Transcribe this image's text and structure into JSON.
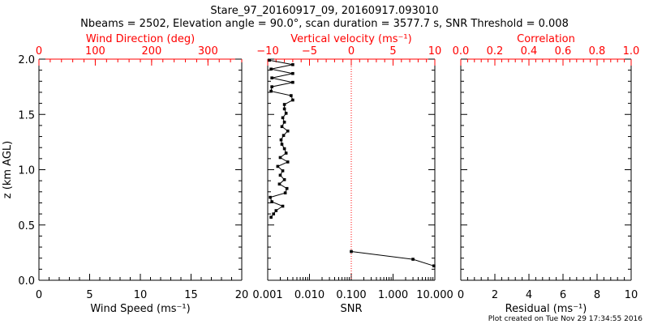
{
  "title": "Stare_97_20160917_09, 20160917.093010",
  "subtitle": "Nbeams = 2502, Elevation angle = 90.0°, scan duration = 3577.7 s, SNR Threshold = 0.008",
  "footer": "Plot created on Tue Nov 29 17:34:55 2016",
  "colors": {
    "axis": "#000000",
    "accent": "#ff0000",
    "data": "#000000"
  },
  "chart_data": [
    {
      "type": "line",
      "panel": "wind",
      "ylabel": "z (km AGL)",
      "ylim": [
        0,
        2.0
      ],
      "yticks": [
        0.0,
        0.5,
        1.0,
        1.5,
        2.0
      ],
      "ytick_labels": [
        "0.0",
        "0.5",
        "1.0",
        "1.5",
        "2.0"
      ],
      "bottom_axis": {
        "label": "Wind Speed (ms⁻¹)",
        "lim": [
          0,
          20
        ],
        "ticks": [
          0,
          5,
          10,
          15,
          20
        ],
        "tick_labels": [
          "0",
          "5",
          "10",
          "15",
          "20"
        ]
      },
      "top_axis": {
        "label": "Wind Direction (deg)",
        "lim": [
          0,
          360
        ],
        "ticks": [
          0,
          100,
          200,
          300
        ],
        "tick_labels": [
          "0",
          "100",
          "200",
          "300"
        ]
      },
      "series": []
    },
    {
      "type": "line",
      "panel": "vertical",
      "ylim": [
        0,
        2.0
      ],
      "bottom_axis": {
        "label": "SNR",
        "scale": "log",
        "lim": [
          0.001,
          10
        ],
        "ticks": [
          0.001,
          0.01,
          0.1,
          1,
          10
        ],
        "tick_labels": [
          "0.001",
          "0.010",
          "0.100",
          "1.000",
          "10.000"
        ]
      },
      "top_axis": {
        "label": "Vertical velocity (ms⁻¹)",
        "lim": [
          -10,
          10
        ],
        "ticks": [
          -10,
          -5,
          0,
          5,
          10
        ],
        "tick_labels": [
          "−10",
          "−5",
          "0",
          "5",
          "10"
        ]
      },
      "zero_line": {
        "axis": "top",
        "value": 0
      },
      "series": [
        {
          "axis": "top",
          "points": [
            {
              "x": -9.8,
              "z": 1.99
            },
            {
              "x": -7.0,
              "z": 1.95
            },
            {
              "x": -9.6,
              "z": 1.91
            },
            {
              "x": -7.0,
              "z": 1.87
            },
            {
              "x": -9.5,
              "z": 1.83
            },
            {
              "x": -7.0,
              "z": 1.79
            },
            {
              "x": -9.5,
              "z": 1.75
            },
            {
              "x": -9.6,
              "z": 1.71
            },
            {
              "x": -7.2,
              "z": 1.67
            },
            {
              "x": -7.0,
              "z": 1.63
            },
            {
              "x": -8.0,
              "z": 1.59
            },
            {
              "x": -8.0,
              "z": 1.55
            },
            {
              "x": -7.8,
              "z": 1.51
            },
            {
              "x": -8.2,
              "z": 1.47
            },
            {
              "x": -8.0,
              "z": 1.43
            },
            {
              "x": -8.3,
              "z": 1.39
            },
            {
              "x": -7.6,
              "z": 1.35
            },
            {
              "x": -8.1,
              "z": 1.31
            },
            {
              "x": -8.4,
              "z": 1.27
            },
            {
              "x": -8.3,
              "z": 1.23
            },
            {
              "x": -8.0,
              "z": 1.19
            },
            {
              "x": -7.8,
              "z": 1.15
            },
            {
              "x": -8.5,
              "z": 1.11
            },
            {
              "x": -7.6,
              "z": 1.07
            },
            {
              "x": -8.8,
              "z": 1.03
            },
            {
              "x": -8.2,
              "z": 0.99
            },
            {
              "x": -8.5,
              "z": 0.95
            },
            {
              "x": -8.0,
              "z": 0.91
            },
            {
              "x": -8.6,
              "z": 0.87
            },
            {
              "x": -7.7,
              "z": 0.83
            },
            {
              "x": -7.9,
              "z": 0.79
            },
            {
              "x": -9.7,
              "z": 0.75
            },
            {
              "x": -9.5,
              "z": 0.71
            },
            {
              "x": -8.2,
              "z": 0.67
            },
            {
              "x": -9.0,
              "z": 0.63
            },
            {
              "x": -9.3,
              "z": 0.6
            },
            {
              "x": -9.6,
              "z": 0.57
            }
          ]
        },
        {
          "axis": "bottom",
          "points": [
            {
              "x": 0.1,
              "z": 0.26
            },
            {
              "x": 3.0,
              "z": 0.19
            },
            {
              "x": 9.5,
              "z": 0.13
            }
          ]
        }
      ]
    },
    {
      "type": "line",
      "panel": "correlation",
      "ylim": [
        0,
        2.0
      ],
      "bottom_axis": {
        "label": "Residual (ms⁻¹)",
        "lim": [
          0,
          10
        ],
        "ticks": [
          0,
          2,
          4,
          6,
          8,
          10
        ],
        "tick_labels": [
          "0",
          "2",
          "4",
          "6",
          "8",
          "10"
        ]
      },
      "top_axis": {
        "label": "Correlation",
        "lim": [
          0,
          1
        ],
        "ticks": [
          0,
          0.2,
          0.4,
          0.6,
          0.8,
          1.0
        ],
        "tick_labels": [
          "0.0",
          "0.2",
          "0.4",
          "0.6",
          "0.8",
          "1.0"
        ]
      },
      "series": []
    }
  ]
}
